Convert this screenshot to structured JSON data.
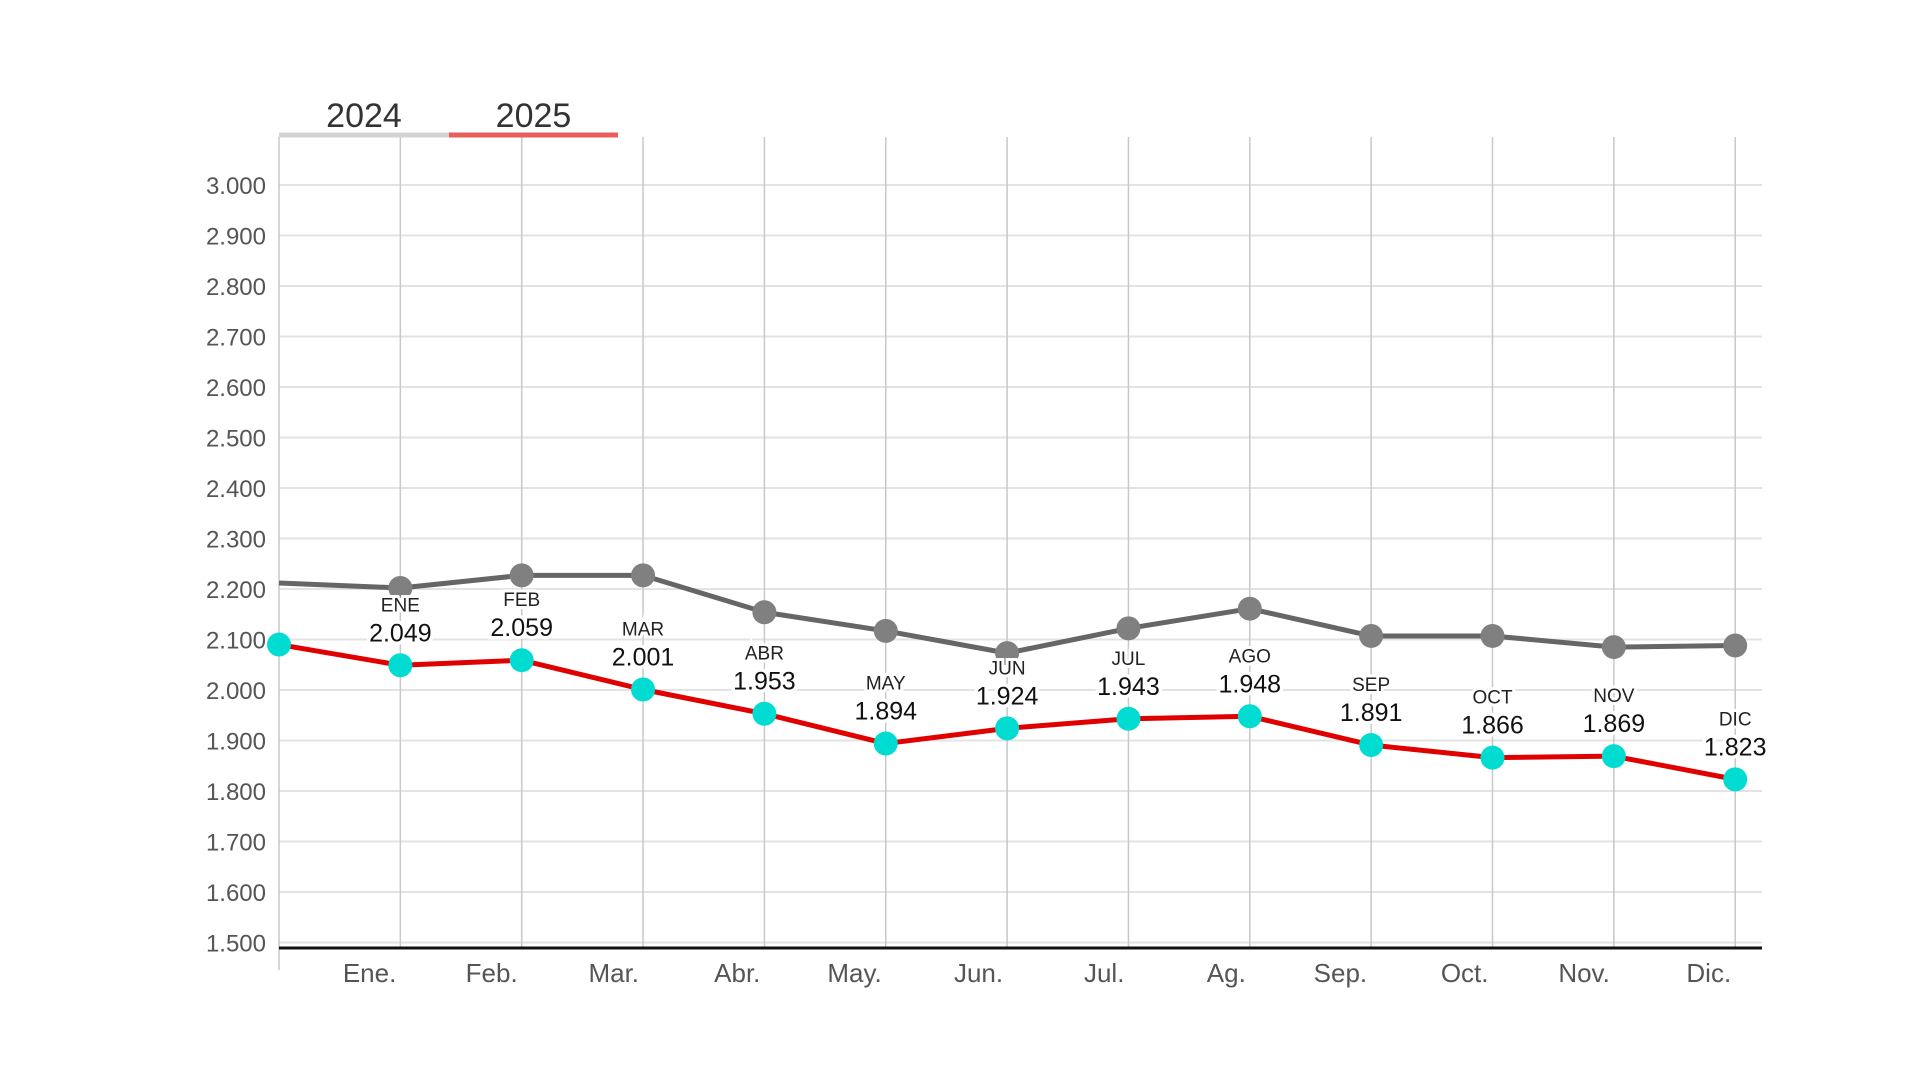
{
  "chart_data": {
    "type": "line",
    "title": "",
    "xlabel": "",
    "ylabel": "",
    "ylim": [
      1500,
      3000
    ],
    "yticks": [
      "3.000",
      "2.900",
      "2.800",
      "2.700",
      "2.600",
      "2.500",
      "2.400",
      "2.300",
      "2.200",
      "2.100",
      "2.000",
      "1.900",
      "1.800",
      "1.700",
      "1.600",
      "1.500"
    ],
    "ytick_values": [
      3000,
      2900,
      2800,
      2700,
      2600,
      2500,
      2400,
      2300,
      2200,
      2100,
      2000,
      1900,
      1800,
      1700,
      1600,
      1500
    ],
    "categories": [
      "Ene.",
      "Feb.",
      "Mar.",
      "Abr.",
      "May.",
      "Jun.",
      "Jul.",
      "Ag.",
      "Sep.",
      "Oct.",
      "Nov.",
      "Dic."
    ],
    "grid": true,
    "legend": {
      "placement": "top-left",
      "items": [
        {
          "label": "2024",
          "color": "#d3d3d3"
        },
        {
          "label": "2025",
          "color": "#e85c5c"
        }
      ]
    },
    "series": [
      {
        "name": "2024",
        "color": "#666666",
        "marker_color": "#808080",
        "start_value": 2212,
        "values": [
          2202,
          2227,
          2227,
          2154,
          2117,
          2073,
          2122,
          2161,
          2107,
          2107,
          2085,
          2088
        ]
      },
      {
        "name": "2025",
        "color": "#e00000",
        "marker_color": "#00dcd2",
        "start_value": 2090,
        "values": [
          2049,
          2059,
          2001,
          1953,
          1894,
          1924,
          1943,
          1948,
          1891,
          1866,
          1869,
          1823
        ],
        "point_month_labels": [
          "ENE",
          "FEB",
          "MAR",
          "ABR",
          "MAY",
          "JUN",
          "JUL",
          "AGO",
          "SEP",
          "OCT",
          "NOV",
          "DIC"
        ],
        "point_value_labels": [
          "2.049",
          "2.059",
          "2.001",
          "1.953",
          "1.894",
          "1.924",
          "1.943",
          "1.948",
          "1.891",
          "1.866",
          "1.869",
          "1.823"
        ]
      }
    ]
  }
}
